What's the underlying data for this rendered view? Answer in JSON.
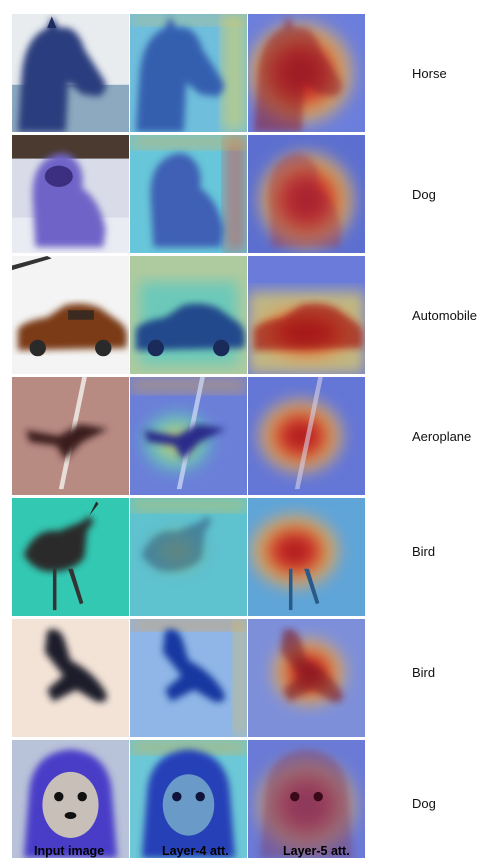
{
  "rows": [
    {
      "label": "Horse"
    },
    {
      "label": "Dog"
    },
    {
      "label": "Automobile"
    },
    {
      "label": "Aeroplane"
    },
    {
      "label": "Bird"
    },
    {
      "label": "Bird"
    },
    {
      "label": "Dog"
    }
  ],
  "columns": [
    "Input image",
    "Layer-4 att.",
    "Layer-5 att."
  ]
}
